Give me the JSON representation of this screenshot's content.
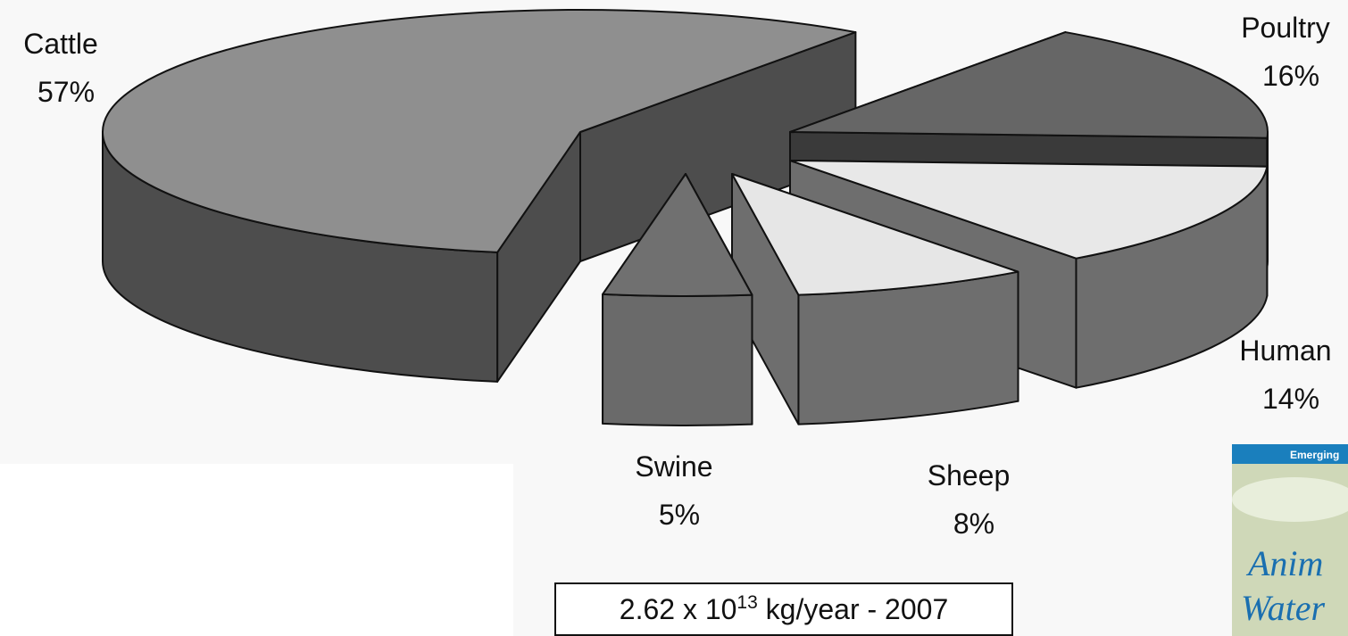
{
  "chart_data": {
    "type": "pie3d",
    "categories": [
      "Cattle",
      "Poultry",
      "Human",
      "Sheep",
      "Swine"
    ],
    "values": [
      57,
      16,
      14,
      8,
      5
    ],
    "value_labels": [
      "57%",
      "16%",
      "14%",
      "8%",
      "5%"
    ],
    "colors": [
      "#8f8f8f",
      "#666666",
      "#e8e8e8",
      "#e6e6e6",
      "#707070"
    ],
    "side_colors": [
      "#4d4d4d",
      "#3a3a3a",
      "#6e6e6e",
      "#6e6e6e",
      "#6a6a6a"
    ],
    "annotation": {
      "base": "2.62 x 10",
      "exponent": "13",
      "rest": " kg/year - 2007"
    }
  },
  "cover": {
    "banner": "Emerging",
    "line1": "Anim",
    "line2": "Water"
  }
}
